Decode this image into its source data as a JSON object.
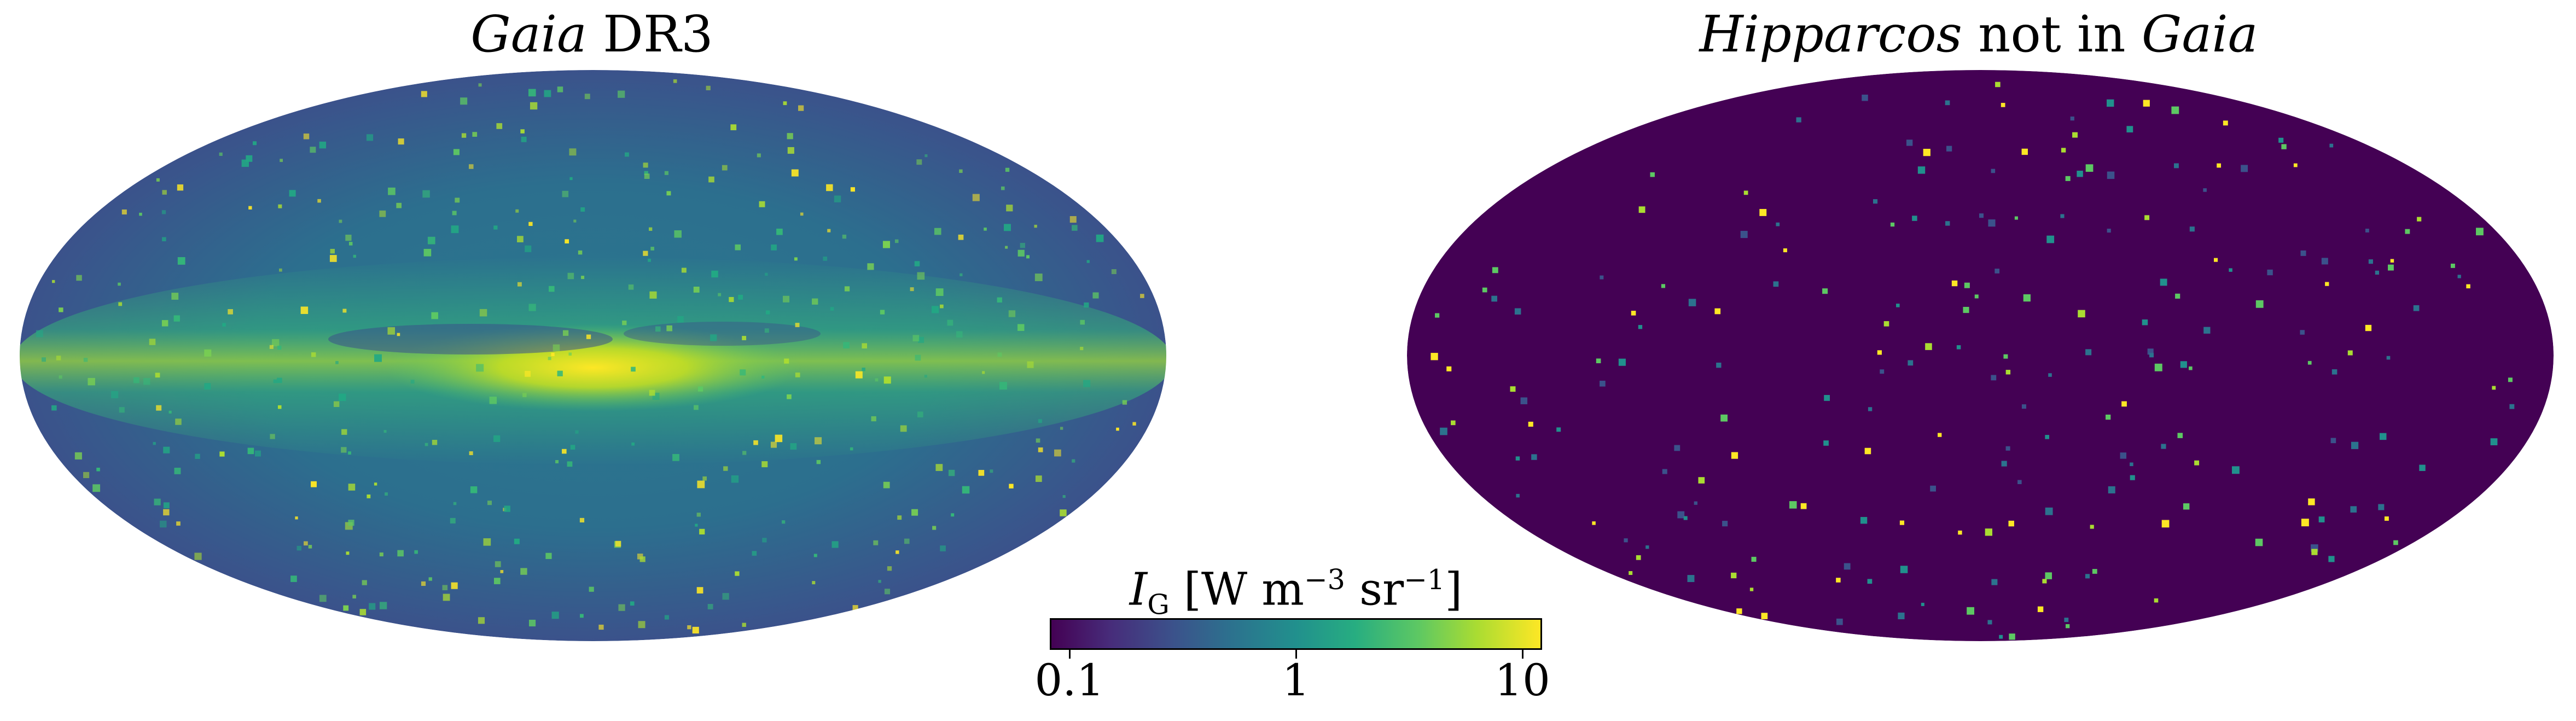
{
  "panels": {
    "left": {
      "title_italic": "Gaia",
      "title_rest": " DR3"
    },
    "right": {
      "title_italic_1": "Hipparcos",
      "title_mid": " not in ",
      "title_italic_2": "Gaia"
    }
  },
  "colorbar": {
    "label_var": "I",
    "label_sub": "G",
    "label_open": " [W m",
    "label_exp1": "−3",
    "label_mid": " sr",
    "label_exp2": "−1",
    "label_close": "]",
    "scale": "log",
    "colormap": "viridis",
    "ticks": [
      "0.1",
      "1",
      "10"
    ]
  },
  "colors": {
    "background_low": "#440154",
    "mid": "#21908d",
    "high": "#fde725"
  }
}
